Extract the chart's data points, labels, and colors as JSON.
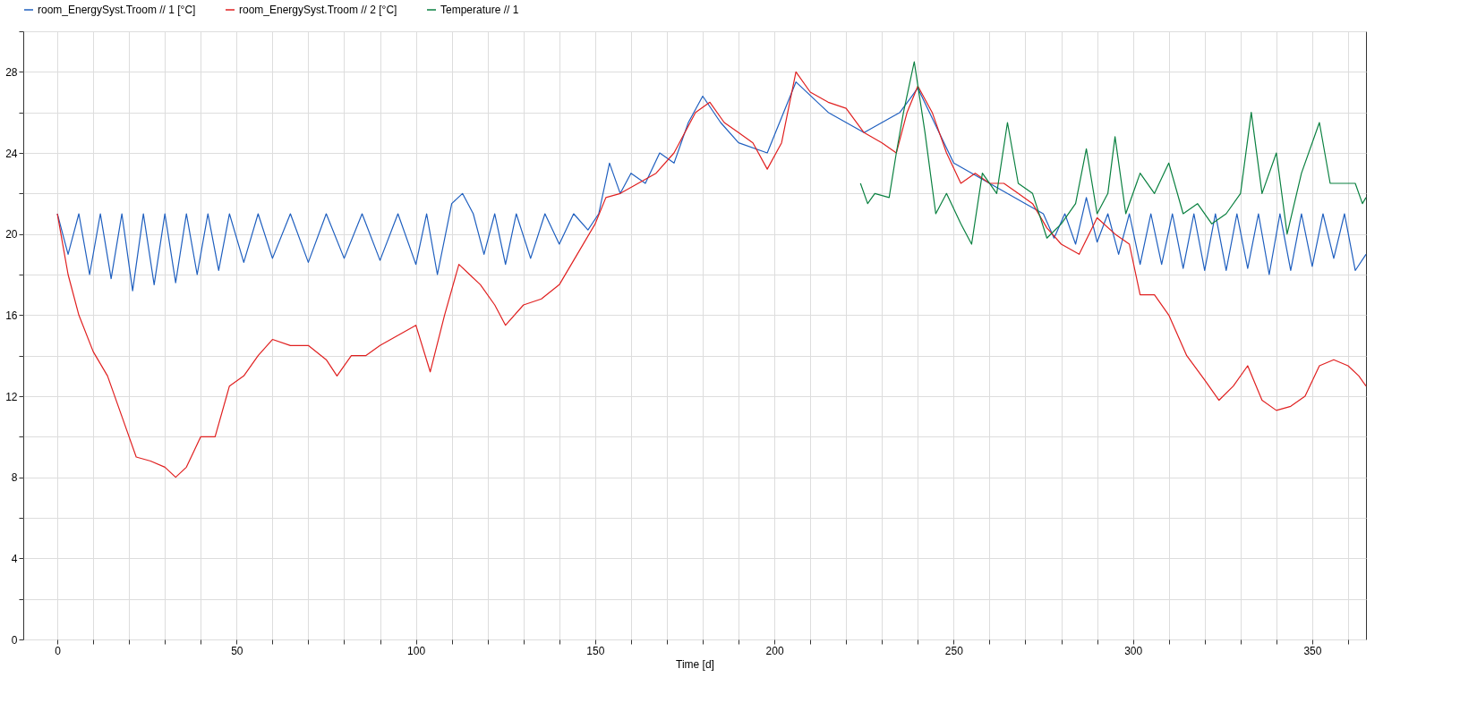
{
  "chart_data": {
    "type": "line",
    "xlabel": "Time [d]",
    "legend": "top left",
    "grid": true,
    "line_style": "solid",
    "marker": "none",
    "xlim": [
      -9.5,
      365
    ],
    "ylim": [
      0,
      30
    ],
    "xticks": [
      0,
      {
        "value": 10,
        "label": null
      },
      {
        "value": 20,
        "label": null
      },
      {
        "value": 30,
        "label": null
      },
      {
        "value": 40,
        "label": null
      },
      50,
      {
        "value": 60,
        "label": null
      },
      {
        "value": 70,
        "label": null
      },
      {
        "value": 80,
        "label": null
      },
      {
        "value": 90,
        "label": null
      },
      100,
      {
        "value": 110,
        "label": null
      },
      {
        "value": 120,
        "label": null
      },
      {
        "value": 130,
        "label": null
      },
      {
        "value": 140,
        "label": null
      },
      150,
      {
        "value": 160,
        "label": null
      },
      {
        "value": 170,
        "label": null
      },
      {
        "value": 180,
        "label": null
      },
      {
        "value": 190,
        "label": null
      },
      200,
      {
        "value": 210,
        "label": null
      },
      {
        "value": 220,
        "label": null
      },
      {
        "value": 230,
        "label": null
      },
      {
        "value": 240,
        "label": null
      },
      250,
      {
        "value": 260,
        "label": null
      },
      {
        "value": 270,
        "label": null
      },
      {
        "value": 280,
        "label": null
      },
      {
        "value": 290,
        "label": null
      },
      300,
      {
        "value": 310,
        "label": null
      },
      {
        "value": 320,
        "label": null
      },
      {
        "value": 330,
        "label": null
      },
      {
        "value": 340,
        "label": null
      },
      350,
      {
        "value": 360,
        "label": null
      }
    ],
    "yticks": [
      0,
      {
        "value": 2,
        "label": null
      },
      4,
      {
        "value": 6,
        "label": null
      },
      8,
      {
        "value": 10,
        "label": null
      },
      12,
      {
        "value": 14,
        "label": null
      },
      16,
      {
        "value": 18,
        "label": null
      },
      20,
      {
        "value": 22,
        "label": null
      },
      24,
      {
        "value": 26,
        "label": null
      },
      28,
      {
        "value": 30,
        "label": null
      }
    ],
    "series": [
      {
        "name": "room_EnergySyst.Troom // 1 [°C]",
        "color": "#1f5fbf",
        "x": [
          0,
          3,
          6,
          9,
          12,
          15,
          18,
          21,
          24,
          27,
          30,
          33,
          36,
          39,
          42,
          45,
          48,
          52,
          56,
          60,
          65,
          70,
          75,
          80,
          85,
          90,
          95,
          100,
          103,
          106,
          110,
          113,
          116,
          119,
          122,
          125,
          128,
          132,
          136,
          140,
          144,
          148,
          151,
          154,
          157,
          160,
          164,
          168,
          172,
          176,
          180,
          185,
          190,
          198,
          206,
          215,
          225,
          235,
          240,
          250,
          260,
          270,
          275,
          278,
          281,
          284,
          287,
          290,
          293,
          296,
          299,
          302,
          305,
          308,
          311,
          314,
          317,
          320,
          323,
          326,
          329,
          332,
          335,
          338,
          341,
          344,
          347,
          350,
          353,
          356,
          359,
          362,
          365
        ],
        "values": [
          21,
          19,
          21,
          18,
          21,
          17.8,
          21,
          17.2,
          21,
          17.5,
          21,
          17.6,
          21,
          18,
          21,
          18.2,
          21,
          18.6,
          21,
          18.8,
          21,
          18.6,
          21,
          18.8,
          21,
          18.7,
          21,
          18.5,
          21,
          18,
          21.5,
          22,
          21,
          19,
          21,
          18.5,
          21,
          18.8,
          21,
          19.5,
          21,
          20.2,
          21,
          23.5,
          22,
          23,
          22.5,
          24,
          23.5,
          25.5,
          26.8,
          25.5,
          24.5,
          24,
          27.5,
          26,
          25,
          26,
          27.2,
          23.5,
          22.5,
          21.5,
          21,
          19.8,
          21,
          19.5,
          21.8,
          19.6,
          21,
          19,
          21,
          18.5,
          21,
          18.5,
          21,
          18.3,
          21,
          18.2,
          21,
          18.2,
          21,
          18.3,
          21,
          18,
          21,
          18.2,
          21,
          18.4,
          21,
          18.8,
          21,
          18.2,
          19
        ]
      },
      {
        "name": "room_EnergySyst.Troom // 2 [°C]",
        "color": "#e02020",
        "x": [
          0,
          3,
          6,
          10,
          14,
          18,
          22,
          26,
          30,
          33,
          36,
          40,
          44,
          48,
          52,
          56,
          60,
          65,
          70,
          75,
          78,
          82,
          86,
          90,
          95,
          100,
          104,
          108,
          112,
          115,
          118,
          122,
          125,
          130,
          135,
          140,
          145,
          150,
          153,
          157,
          162,
          167,
          172,
          178,
          182,
          186,
          190,
          194,
          198,
          202,
          206,
          210,
          215,
          220,
          225,
          230,
          234,
          237,
          240,
          244,
          248,
          252,
          256,
          260,
          264,
          268,
          272,
          276,
          280,
          285,
          290,
          295,
          299,
          302,
          306,
          310,
          315,
          320,
          324,
          328,
          332,
          336,
          340,
          344,
          348,
          352,
          356,
          360,
          363,
          365
        ],
        "values": [
          21,
          18,
          16,
          14.2,
          13,
          11,
          9,
          8.8,
          8.5,
          8,
          8.5,
          10,
          10,
          12.5,
          13,
          14,
          14.8,
          14.5,
          14.5,
          13.8,
          13,
          14,
          14,
          14.5,
          15,
          15.5,
          13.2,
          16,
          18.5,
          18,
          17.5,
          16.5,
          15.5,
          16.5,
          16.8,
          17.5,
          19,
          20.5,
          21.8,
          22,
          22.5,
          23,
          24,
          26,
          26.5,
          25.5,
          25,
          24.5,
          23.2,
          24.5,
          28,
          27,
          26.5,
          26.2,
          25,
          24.5,
          24,
          26,
          27.3,
          26,
          24,
          22.5,
          23,
          22.5,
          22.5,
          22,
          21.5,
          20.3,
          19.5,
          19,
          20.8,
          20,
          19.5,
          17,
          17,
          16,
          14,
          12.8,
          11.8,
          12.5,
          13.5,
          11.8,
          11.3,
          11.5,
          12,
          13.5,
          13.8,
          13.5,
          13,
          12.5
        ]
      },
      {
        "name": "Temperature // 1",
        "color": "#0a8040",
        "x": [
          224,
          226,
          228,
          232,
          234,
          236,
          239,
          242,
          245,
          248,
          252,
          255,
          258,
          262,
          265,
          268,
          272,
          276,
          280,
          284,
          287,
          290,
          293,
          295,
          298,
          302,
          306,
          310,
          314,
          318,
          322,
          326,
          330,
          333,
          336,
          340,
          343,
          347,
          352,
          355,
          362,
          364,
          365
        ],
        "values": [
          22.5,
          21.5,
          22,
          21.8,
          24,
          26,
          28.5,
          25,
          21,
          22,
          20.5,
          19.5,
          23,
          22,
          25.5,
          22.5,
          22,
          19.8,
          20.5,
          21.5,
          24.2,
          21,
          22,
          24.8,
          21,
          23,
          22,
          23.5,
          21,
          21.5,
          20.5,
          21,
          22,
          26,
          22,
          24,
          20,
          23,
          25.5,
          22.5,
          22.5,
          21.5,
          21.8
        ]
      }
    ]
  }
}
